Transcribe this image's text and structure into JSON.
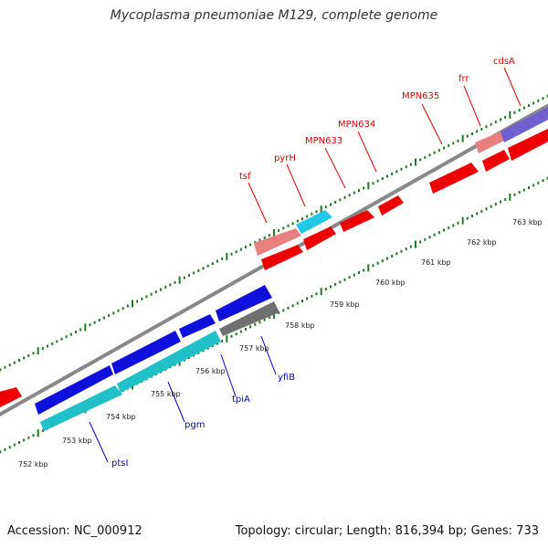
{
  "title": "Mycoplasma pneumoniae M129, complete genome",
  "footer": {
    "accession": "Accession: NC_000912",
    "summary": "Topology: circular; Length: 816,394 bp; Genes: 733"
  },
  "colors": {
    "forward_gene": "#ee0000",
    "forward_gene_light": "#e88080",
    "forward_cyan": "#22c8e8",
    "forward_purple": "#7060d0",
    "reverse_blue": "#1010dd",
    "reverse_cyan": "#20c0c8",
    "reverse_gray": "#707070",
    "backbone": "#888888",
    "tick": "#227722",
    "top_label": "#e00000",
    "bottom_label": "#0000cc"
  },
  "kbp_labels": [
    "752 kbp",
    "753 kbp",
    "754 kbp",
    "755 kbp",
    "756 kbp",
    "757 kbp",
    "758 kbp",
    "759 kbp",
    "760 kbp",
    "761 kbp",
    "762 kbp",
    "763 kbp"
  ],
  "top_gene_labels": [
    "tsf",
    "pyrH",
    "MPN633",
    "MPN634",
    "MPN635",
    "frr",
    "cdsA"
  ],
  "bottom_gene_labels": [
    "ptsI",
    "pgm",
    "tpiA",
    "yfiB"
  ]
}
